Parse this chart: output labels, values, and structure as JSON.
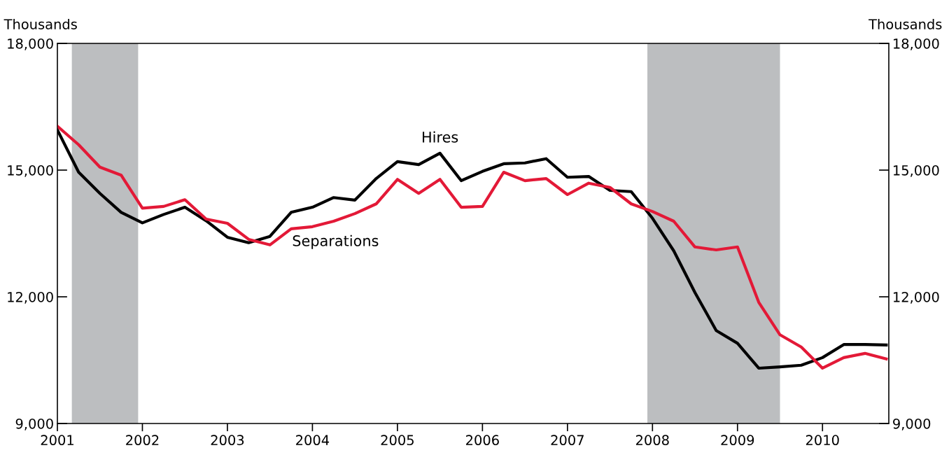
{
  "chart_data": {
    "type": "line",
    "ylabel": "Thousands",
    "y2label": "Thousands",
    "x": [
      2001.0,
      2001.25,
      2001.5,
      2001.75,
      2002.0,
      2002.25,
      2002.5,
      2002.75,
      2003.0,
      2003.25,
      2003.5,
      2003.75,
      2004.0,
      2004.25,
      2004.5,
      2004.75,
      2005.0,
      2005.25,
      2005.5,
      2005.75,
      2006.0,
      2006.25,
      2006.5,
      2006.75,
      2007.0,
      2007.25,
      2007.5,
      2007.75,
      2008.0,
      2008.25,
      2008.5,
      2008.75,
      2009.0,
      2009.25,
      2009.5,
      2009.75,
      2010.0,
      2010.25,
      2010.5,
      2010.75
    ],
    "series": [
      {
        "color": "#000000",
        "values": [
          15950,
          14950,
          14450,
          14000,
          13750,
          13950,
          14120,
          13800,
          13410,
          13280,
          13430,
          14000,
          14120,
          14350,
          14290,
          14800,
          15200,
          15130,
          15400,
          14750,
          14970,
          15150,
          15170,
          15270,
          14830,
          14850,
          14520,
          14490,
          13860,
          13090,
          12100,
          11200,
          10900,
          10310,
          10340,
          10380,
          10560,
          10870,
          10870,
          10860
        ]
      },
      {
        "color": "#e31937",
        "values": [
          16040,
          15600,
          15070,
          14880,
          14100,
          14140,
          14300,
          13840,
          13740,
          13360,
          13230,
          13610,
          13660,
          13790,
          13970,
          14200,
          14780,
          14450,
          14780,
          14120,
          14140,
          14950,
          14750,
          14800,
          14420,
          14690,
          14590,
          14200,
          14020,
          13790,
          13180,
          13110,
          13180,
          11870,
          11100,
          10810,
          10310,
          10560,
          10660,
          10530
        ]
      }
    ],
    "xlim": [
      2001,
      2010.78
    ],
    "xticks": [
      2001,
      2002,
      2003,
      2004,
      2005,
      2006,
      2007,
      2008,
      2009,
      2010
    ],
    "ylim": [
      9000,
      18000
    ],
    "yticks": [
      {
        "value": 9000,
        "label": "9,000"
      },
      {
        "value": 12000,
        "label": "12,000"
      },
      {
        "value": 15000,
        "label": "15,000"
      },
      {
        "value": 18000,
        "label": "18,000"
      }
    ],
    "y2lim": [
      9000,
      18000
    ],
    "y2ticks": [
      {
        "value": 9000,
        "label": "9,000"
      },
      {
        "value": 12000,
        "label": "12,000"
      },
      {
        "value": 15000,
        "label": "15,000"
      },
      {
        "value": 18000,
        "label": "18,000"
      }
    ],
    "bands": [
      {
        "axis": "x",
        "from": 2001.17,
        "to": 2001.95,
        "color": "#bcbec0"
      },
      {
        "axis": "x",
        "from": 2007.94,
        "to": 2009.5,
        "color": "#bcbec0"
      }
    ],
    "annotations": [
      {
        "text": "Hires",
        "x": 2005.5,
        "y": 15400
      },
      {
        "text": "Separations",
        "x": 2004.5,
        "y": 13970
      }
    ],
    "grid": false,
    "legend": false,
    "marker": "none",
    "line_style": "solid"
  }
}
